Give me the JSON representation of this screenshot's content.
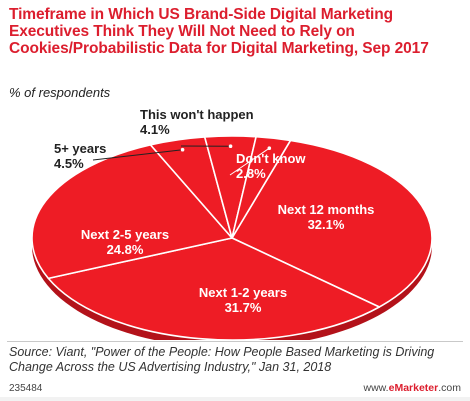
{
  "chart_data": {
    "type": "pie",
    "title": "Timeframe in Which US Brand-Side Digital Marketing Executives Think They Will Not Need to Rely on Cookies/Probabilistic Data for Digital Marketing, Sep 2017",
    "subtitle": "% of respondents",
    "slices": [
      {
        "label": "Next 12 months",
        "value": 32.1,
        "value_label": "32.1%"
      },
      {
        "label": "Next 1-2 years",
        "value": 31.7,
        "value_label": "31.7%"
      },
      {
        "label": "Next 2-5 years",
        "value": 24.8,
        "value_label": "24.8%"
      },
      {
        "label": "5+ years",
        "value": 4.5,
        "value_label": "4.5%"
      },
      {
        "label": "This won't happen",
        "value": 4.1,
        "value_label": "4.1%"
      },
      {
        "label": "Don't know",
        "value": 2.8,
        "value_label": "2.8%"
      }
    ],
    "colors": {
      "slice": "#ee1c25",
      "edge": "#ffffff",
      "title": "#dc1e2e"
    }
  },
  "source": "Source: Viant, \"Power of the People: How People Based Marketing is Driving Change Across the US Advertising Industry,\" Jan 31, 2018",
  "footer": {
    "chart_id": "235484",
    "brand_prefix": "www.",
    "brand_name": "eMarketer",
    "brand_suffix": ".com"
  }
}
